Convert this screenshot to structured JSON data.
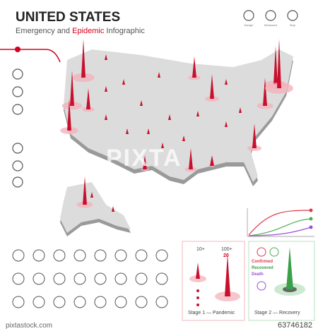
{
  "header": {
    "title": "UNITED STATES",
    "subtitle": {
      "lead": "Emergency and",
      "highlight": "Epidemic",
      "tail": "Infographic"
    }
  },
  "top_icons": [
    "Danger",
    "Biohazard",
    "Stop"
  ],
  "stage1": {
    "low": "10+",
    "high": "100+",
    "count": "20",
    "title": "Stage 1 — Pandemic"
  },
  "stage2": {
    "legend": [
      "Confirmed",
      "Recovered",
      "Death"
    ],
    "title": "Stage 2 — Recovery"
  },
  "watermark": "PIXTA",
  "footer": {
    "site": "pixtastock.com",
    "id": "63746182"
  }
}
